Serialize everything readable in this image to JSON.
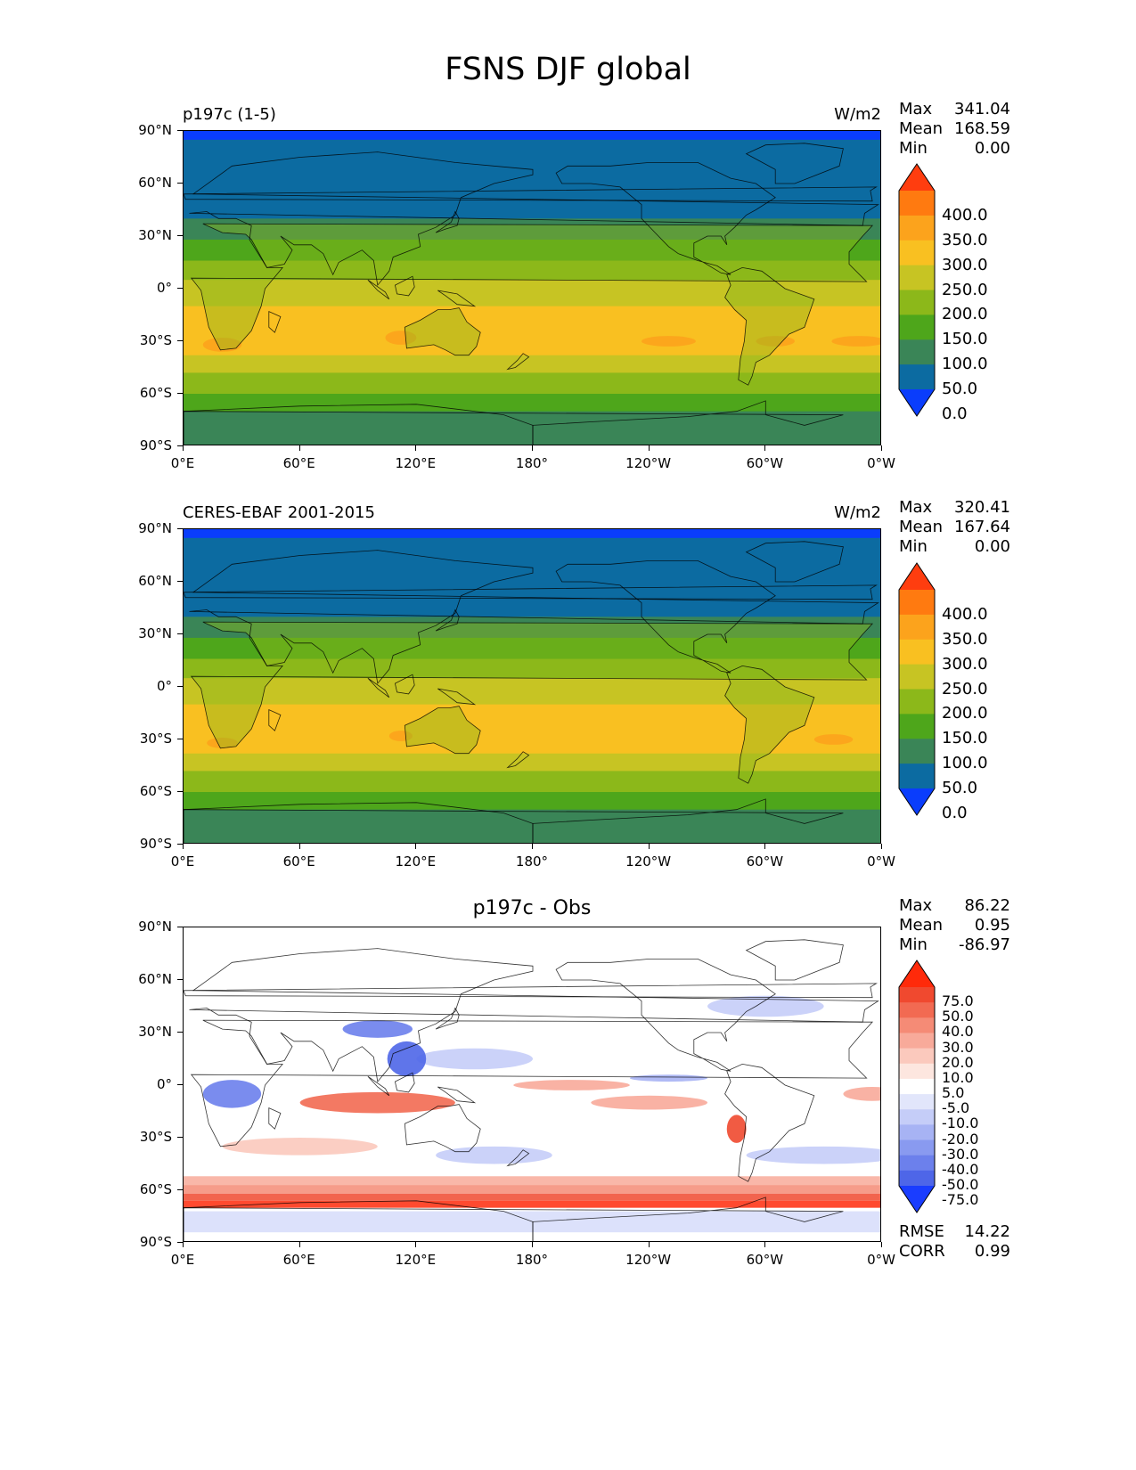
{
  "figure": {
    "title": "FSNS DJF global"
  },
  "lat_ticks": [
    "90°N",
    "60°N",
    "30°N",
    "0°",
    "30°S",
    "60°S",
    "90°S"
  ],
  "lon_ticks": [
    "0°E",
    "60°E",
    "120°E",
    "180°",
    "120°W",
    "60°W",
    "0°W"
  ],
  "stat_labels": {
    "max": "Max",
    "mean": "Mean",
    "min": "Min",
    "rmse": "RMSE",
    "corr": "CORR"
  },
  "panels": [
    {
      "title": "p197c (1-5)",
      "units": "W/m2",
      "stats": {
        "max": "341.04",
        "mean": "168.59",
        "min": "0.00"
      },
      "colorbar": {
        "labels": [
          "400.0",
          "350.0",
          "300.0",
          "250.0",
          "200.0",
          "150.0",
          "100.0",
          "50.0",
          "0.0"
        ],
        "colors": [
          "#ff3d0f",
          "#ff7a10",
          "#fca31c",
          "#f9c021",
          "#c7c423",
          "#8cb81a",
          "#4ea61b",
          "#3a8557",
          "#0c6ba1",
          "#0a3dfc"
        ]
      }
    },
    {
      "title": "CERES-EBAF 2001-2015",
      "units": "W/m2",
      "stats": {
        "max": "320.41",
        "mean": "167.64",
        "min": "0.00"
      },
      "colorbar": {
        "labels": [
          "400.0",
          "350.0",
          "300.0",
          "250.0",
          "200.0",
          "150.0",
          "100.0",
          "50.0",
          "0.0"
        ],
        "colors": [
          "#ff3d0f",
          "#ff7a10",
          "#fca31c",
          "#f9c021",
          "#c7c423",
          "#8cb81a",
          "#4ea61b",
          "#3a8557",
          "#0c6ba1",
          "#0a3dfc"
        ]
      }
    },
    {
      "title": "p197c - Obs",
      "units": "",
      "stats": {
        "max": "86.22",
        "mean": "0.95",
        "min": "-86.97",
        "rmse": "14.22",
        "corr": "0.99"
      },
      "colorbar": {
        "labels": [
          "75.0",
          "50.0",
          "40.0",
          "30.0",
          "20.0",
          "10.0",
          "5.0",
          "-5.0",
          "-10.0",
          "-20.0",
          "-30.0",
          "-40.0",
          "-50.0",
          "-75.0"
        ],
        "colors": [
          "#ff2a0a",
          "#f0492f",
          "#f26a52",
          "#f58b76",
          "#f8aa9a",
          "#fbc9bd",
          "#fde6df",
          "#ffffff",
          "#e2e6fb",
          "#c5cdf8",
          "#a7b3f4",
          "#899af0",
          "#6c80ec",
          "#4e66e8",
          "#1a3dff"
        ]
      }
    }
  ]
}
